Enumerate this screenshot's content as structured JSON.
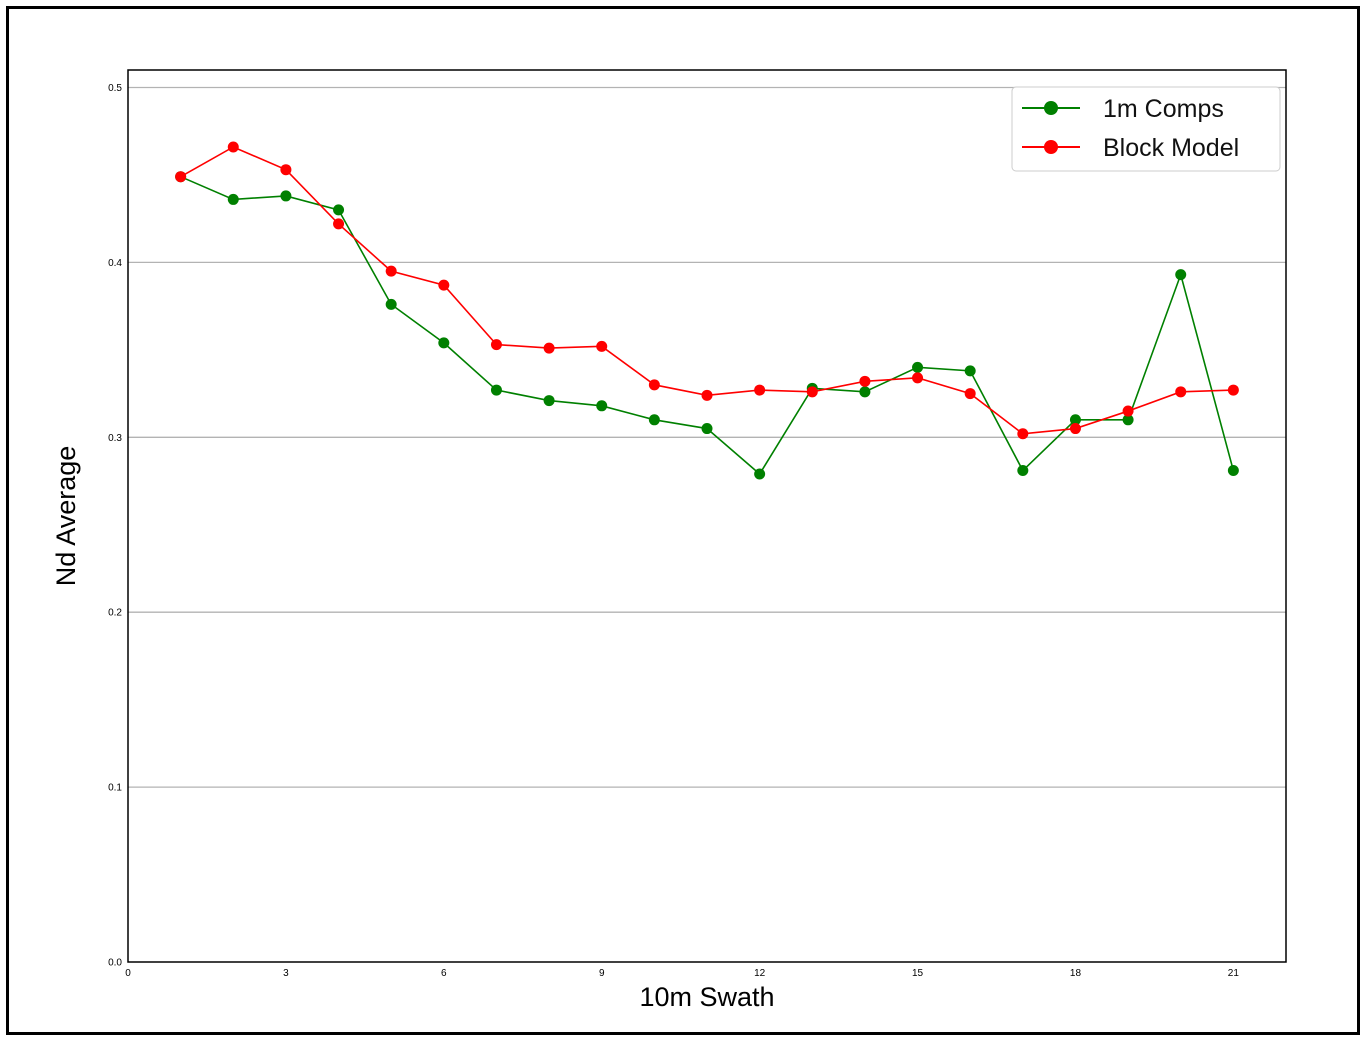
{
  "chart_data": {
    "type": "line",
    "title": "",
    "xlabel": "10m Swath",
    "ylabel": "Nd Average",
    "xlim": [
      0,
      22
    ],
    "ylim": [
      0.0,
      0.51
    ],
    "xticks": [
      0,
      3,
      6,
      9,
      12,
      15,
      18,
      21
    ],
    "yticks": [
      0.0,
      0.1,
      0.2,
      0.3,
      0.4,
      0.5
    ],
    "grid": "horizontal",
    "legend_position": "top-right",
    "x": [
      1,
      2,
      3,
      4,
      5,
      6,
      7,
      8,
      9,
      10,
      11,
      12,
      13,
      14,
      15,
      16,
      17,
      18,
      19,
      20,
      21
    ],
    "series": [
      {
        "name": "1m Comps",
        "color": "#008000",
        "marker": "circle",
        "values": [
          0.449,
          0.436,
          0.438,
          0.43,
          0.376,
          0.354,
          0.327,
          0.321,
          0.318,
          0.31,
          0.305,
          0.279,
          0.328,
          0.326,
          0.34,
          0.338,
          0.281,
          0.31,
          0.31,
          0.393,
          0.281
        ]
      },
      {
        "name": "Block Model",
        "color": "#ff0000",
        "marker": "circle",
        "values": [
          0.449,
          0.466,
          0.453,
          0.422,
          0.395,
          0.387,
          0.353,
          0.351,
          0.352,
          0.33,
          0.324,
          0.327,
          0.326,
          0.332,
          0.334,
          0.325,
          0.302,
          0.305,
          0.315,
          0.326,
          0.327
        ]
      }
    ]
  }
}
